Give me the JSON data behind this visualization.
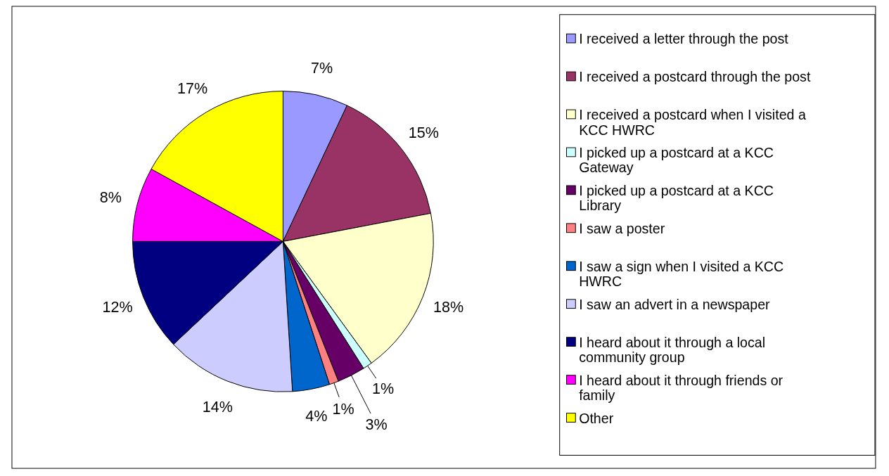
{
  "chart_data": {
    "type": "pie",
    "categories": [
      "I received a letter through the post",
      "I received a postcard through the post",
      "I received a postcard when I visited a KCC HWRC",
      "I picked up a postcard at a KCC Gateway",
      "I picked up a postcard at a KCC Library",
      "I saw a poster",
      "I saw a sign when I visited a KCC HWRC",
      "I saw an advert in a newspaper",
      "I heard about it through a local community group",
      "I heard about it through friends or family",
      "Other"
    ],
    "values": [
      7,
      15,
      18,
      1,
      3,
      1,
      4,
      14,
      12,
      8,
      17
    ],
    "colors": [
      "#9999ff",
      "#993366",
      "#ffffcc",
      "#ccffff",
      "#660066",
      "#ff8080",
      "#0066cc",
      "#ccccff",
      "#000080",
      "#ff00ff",
      "#ffff00"
    ],
    "value_labels": [
      "7%",
      "15%",
      "18%",
      "1%",
      "3%",
      "1%",
      "4%",
      "14%",
      "12%",
      "8%",
      "17%"
    ],
    "legend": "right"
  }
}
